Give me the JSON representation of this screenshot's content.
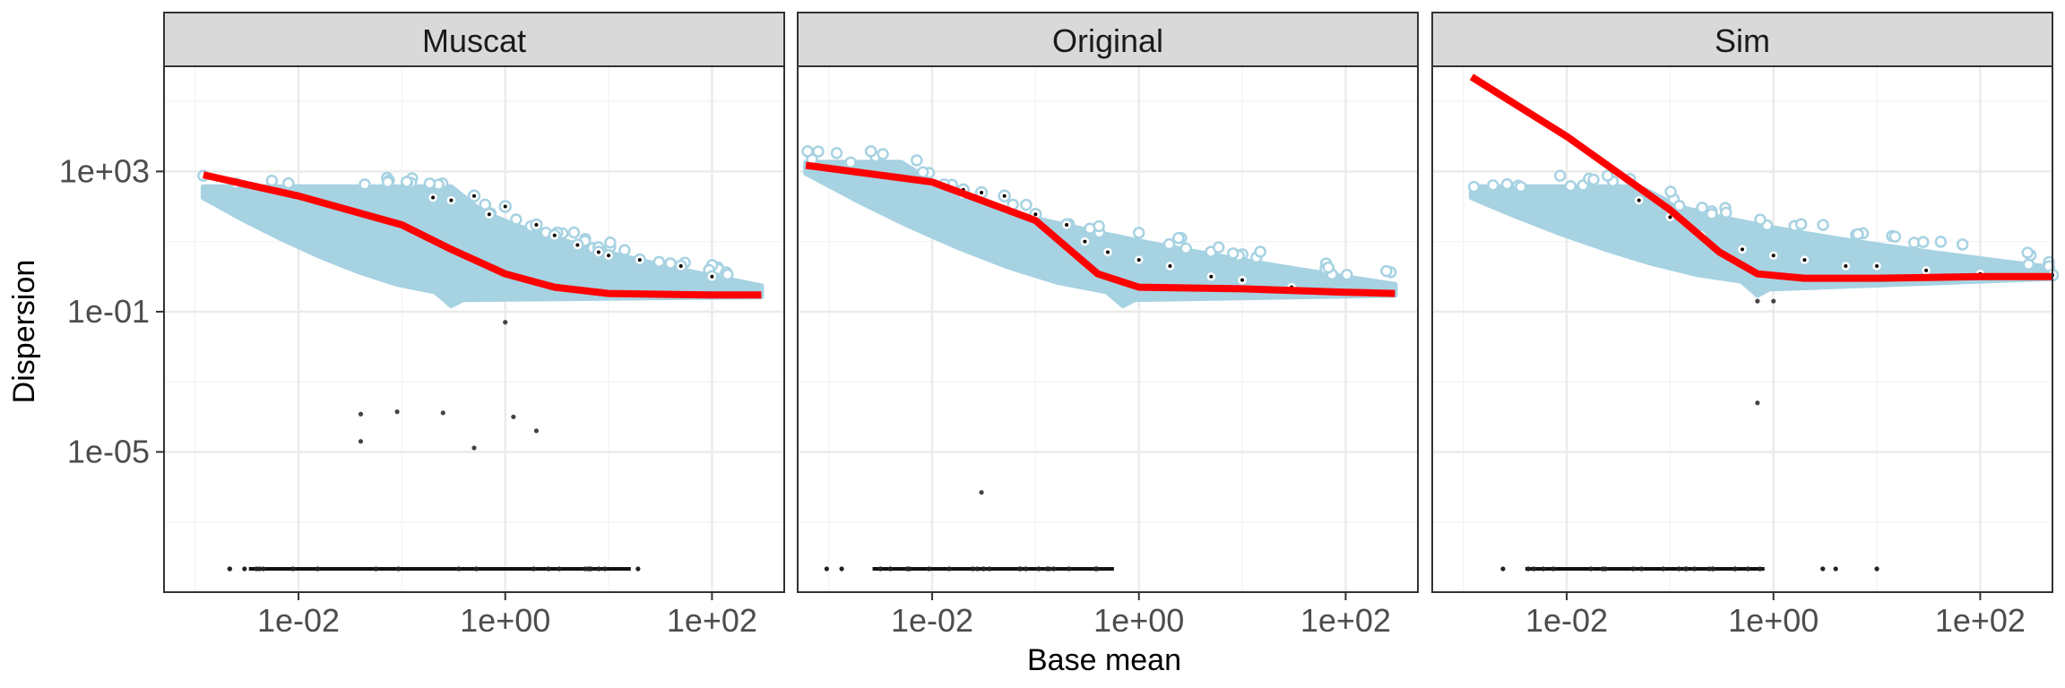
{
  "chart_data": {
    "type": "scatter",
    "xlabel": "Base mean",
    "ylabel": "Dispersion",
    "x_scale": "log10",
    "y_scale": "log10",
    "xlim": [
      0.0005,
      500
    ],
    "ylim": [
      1e-09,
      1000000.0
    ],
    "x_ticks": [
      0.01,
      1,
      100
    ],
    "x_tick_labels": [
      "1e-02",
      "1e+00",
      "1e+02"
    ],
    "y_ticks": [
      1000,
      0.1,
      1e-05
    ],
    "y_tick_labels": [
      "1e+03",
      "1e-01",
      "1e-05"
    ],
    "grid": true,
    "legend": "none",
    "colors": {
      "gene_estimate": "#a6d2e2",
      "final_estimate": "#000000",
      "fitted_trend": "#ff0000",
      "strip_fill": "#d9d9d9",
      "grid_major": "#ebebeb",
      "grid_minor": "#f4f4f4",
      "panel_border": "#333333"
    },
    "panels": [
      {
        "title": "Muscat",
        "fit": [
          [
            0.0012,
            800
          ],
          [
            0.01,
            200
          ],
          [
            0.1,
            30
          ],
          [
            0.3,
            6
          ],
          [
            1,
            1.2
          ],
          [
            3,
            0.5
          ],
          [
            10,
            0.33
          ],
          [
            100,
            0.3
          ],
          [
            300,
            0.3
          ]
        ],
        "cloud": {
          "x_start": 0.0012,
          "x_knee": 0.3,
          "y_flat": 300,
          "x_min_knee": 0.3,
          "y_min": 0.15,
          "x_end": 300,
          "y_end": 0.3
        },
        "outliers": [
          [
            0.2,
            180
          ],
          [
            0.3,
            150
          ],
          [
            0.5,
            200
          ],
          [
            1,
            100
          ],
          [
            0.7,
            60
          ],
          [
            2,
            30
          ],
          [
            3,
            15
          ],
          [
            5,
            8
          ],
          [
            8,
            5
          ],
          [
            10,
            4
          ],
          [
            20,
            3
          ],
          [
            50,
            2
          ],
          [
            100,
            1
          ]
        ],
        "low_points": [
          [
            0.04,
            0.00012
          ],
          [
            0.04,
            2e-05
          ],
          [
            0.09,
            0.00014
          ],
          [
            0.25,
            0.00013
          ],
          [
            0.5,
            1.3e-05
          ],
          [
            1.2,
            0.0001
          ],
          [
            2,
            4e-05
          ],
          [
            1,
            0.05
          ]
        ],
        "zero_range": [
          0.001,
          20
        ]
      },
      {
        "title": "Original",
        "fit": [
          [
            0.0006,
            1500
          ],
          [
            0.01,
            500
          ],
          [
            0.1,
            40
          ],
          [
            0.4,
            1.2
          ],
          [
            1,
            0.5
          ],
          [
            10,
            0.45
          ],
          [
            100,
            0.36
          ],
          [
            300,
            0.33
          ]
        ],
        "cloud": {
          "x_start": 0.0006,
          "x_knee": 0.005,
          "y_flat": 1500,
          "x_min_knee": 0.7,
          "y_min": 0.15,
          "x_end": 300,
          "y_end": 0.33
        },
        "outliers": [
          [
            0.02,
            300
          ],
          [
            0.03,
            250
          ],
          [
            0.05,
            200
          ],
          [
            0.1,
            60
          ],
          [
            0.2,
            30
          ],
          [
            0.3,
            10
          ],
          [
            0.5,
            5
          ],
          [
            1,
            3
          ],
          [
            2,
            2
          ],
          [
            5,
            1
          ],
          [
            10,
            0.8
          ],
          [
            30,
            0.5
          ]
        ],
        "low_points": [
          [
            0.03,
            7e-07
          ]
        ],
        "zero_range": [
          0.0008,
          0.7
        ]
      },
      {
        "title": "Sim",
        "fit": [
          [
            0.0012,
            500000
          ],
          [
            0.01,
            10000
          ],
          [
            0.03,
            1000
          ],
          [
            0.1,
            80
          ],
          [
            0.3,
            5
          ],
          [
            0.7,
            1.2
          ],
          [
            2,
            0.9
          ],
          [
            10,
            0.9
          ],
          [
            100,
            1
          ],
          [
            500,
            1
          ]
        ],
        "cloud": {
          "x_start": 0.0012,
          "x_knee": 0.05,
          "y_flat": 300,
          "x_min_knee": 0.7,
          "y_min": 0.3,
          "x_end": 500,
          "y_end": 1
        },
        "outliers": [
          [
            0.05,
            150
          ],
          [
            0.1,
            50
          ],
          [
            0.2,
            15
          ],
          [
            0.5,
            6
          ],
          [
            1,
            4
          ],
          [
            2,
            3
          ],
          [
            5,
            2
          ],
          [
            10,
            2
          ],
          [
            30,
            1.5
          ],
          [
            100,
            1.2
          ],
          [
            500,
            1.1
          ]
        ],
        "low_points": [
          [
            0.7,
            0.00025
          ],
          [
            0.7,
            0.2
          ],
          [
            1,
            0.2
          ]
        ],
        "zero_range": [
          0.0012,
          1
        ],
        "zero_extra": [
          3,
          4,
          10
        ]
      }
    ]
  }
}
